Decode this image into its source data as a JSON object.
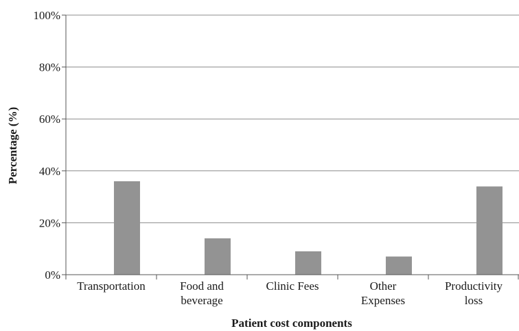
{
  "chart_data": {
    "type": "bar",
    "title": "",
    "xlabel": "Patient cost components",
    "ylabel": "Percentage (%)",
    "categories": [
      [
        "Transportation"
      ],
      [
        "Food and",
        "beverage"
      ],
      [
        "Clinic Fees"
      ],
      [
        "Other",
        "Expenses"
      ],
      [
        "Productivity",
        "loss"
      ]
    ],
    "values": [
      36,
      14,
      9,
      7,
      34
    ],
    "ylim": [
      0,
      100
    ],
    "yticks": [
      "0%",
      "20%",
      "40%",
      "60%",
      "80%",
      "100%"
    ],
    "grid": true,
    "bar_color": "#939393",
    "grid_color": "#8c8c8c"
  }
}
